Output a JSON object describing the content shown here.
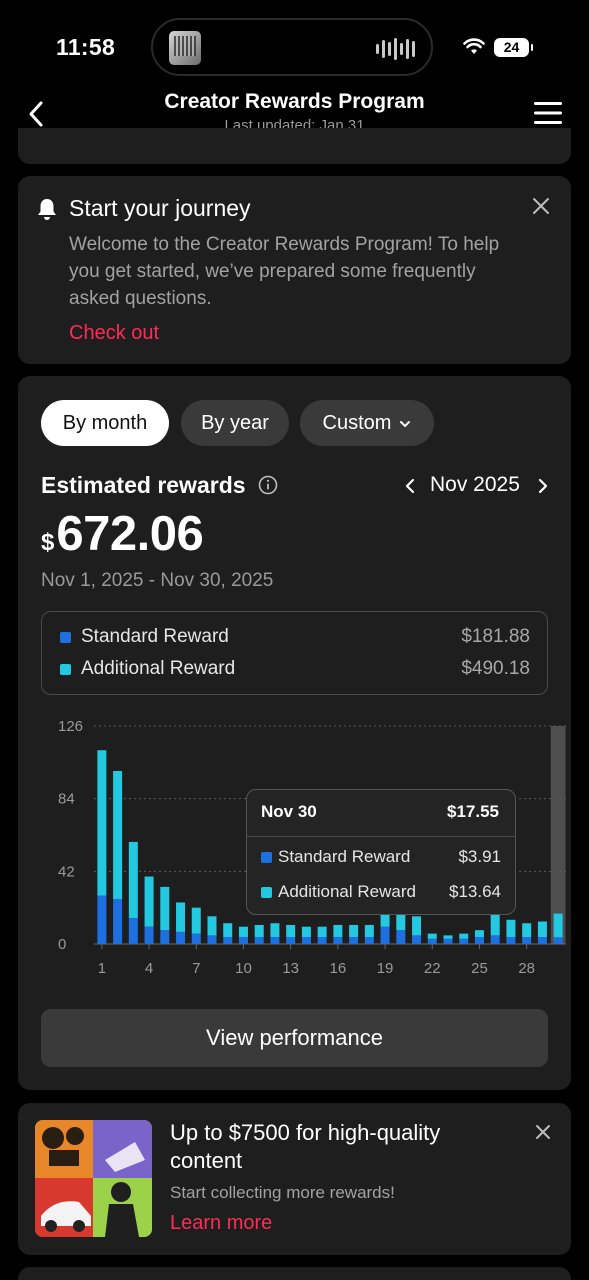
{
  "status_bar": {
    "time": "11:58",
    "battery": "24"
  },
  "header": {
    "title": "Creator Rewards Program",
    "subtitle": "Last updated: Jan 31"
  },
  "journey": {
    "title": "Start your journey",
    "body": "Welcome to the Creator Rewards Program! To help you get started, we’ve prepared some frequently asked questions.",
    "link": "Check out"
  },
  "rewards": {
    "tabs": [
      {
        "label": "By month",
        "selected": true
      },
      {
        "label": "By year",
        "selected": false
      },
      {
        "label": "Custom",
        "selected": false
      }
    ],
    "estimated_label": "Estimated rewards",
    "period": "Nov 2025",
    "currency_symbol": "$",
    "amount": "672.06",
    "date_range": "Nov 1, 2025 - Nov 30, 2025",
    "legend": [
      {
        "label": "Standard Reward",
        "value": "$181.88",
        "color": "#1e6fe0"
      },
      {
        "label": "Additional Reward",
        "value": "$490.18",
        "color": "#22c9e0"
      }
    ],
    "tooltip": {
      "date": "Nov 30",
      "total": "$17.55",
      "rows": [
        {
          "label": "Standard Reward",
          "value": "$3.91"
        },
        {
          "label": "Additional Reward",
          "value": "$13.64"
        }
      ]
    },
    "view_button": "View performance"
  },
  "chart_data": {
    "type": "bar",
    "stacked": true,
    "categories": [
      "1",
      "2",
      "3",
      "4",
      "5",
      "6",
      "7",
      "8",
      "9",
      "10",
      "11",
      "12",
      "13",
      "14",
      "15",
      "16",
      "17",
      "18",
      "19",
      "20",
      "21",
      "22",
      "23",
      "24",
      "25",
      "26",
      "27",
      "28",
      "29",
      "30"
    ],
    "x_tick_labels": [
      "1",
      "4",
      "7",
      "10",
      "13",
      "16",
      "19",
      "22",
      "25",
      "28"
    ],
    "y_ticks": [
      0,
      42,
      84,
      126
    ],
    "ylim": [
      0,
      126
    ],
    "grid": true,
    "highlighted_category": "30",
    "series": [
      {
        "name": "Standard Reward",
        "color": "#1e6fe0",
        "values": [
          28,
          26,
          15,
          10,
          8,
          7,
          6,
          5,
          4,
          4,
          4,
          4,
          4,
          4,
          4,
          4,
          4,
          4,
          10,
          8,
          5,
          3,
          3,
          3,
          4,
          5,
          4,
          4,
          4,
          3.91
        ]
      },
      {
        "name": "Additional Reward",
        "color": "#22c9e0",
        "values": [
          84,
          74,
          44,
          29,
          25,
          17,
          15,
          11,
          8,
          6,
          7,
          8,
          7,
          6,
          6,
          7,
          7,
          7,
          7,
          9,
          11,
          3,
          2,
          3,
          4,
          12,
          10,
          8,
          9,
          13.64
        ]
      }
    ]
  },
  "promo": {
    "title": "Up to $7500 for high-quality content",
    "subtitle": "Start collecting more rewards!",
    "link": "Learn more"
  }
}
